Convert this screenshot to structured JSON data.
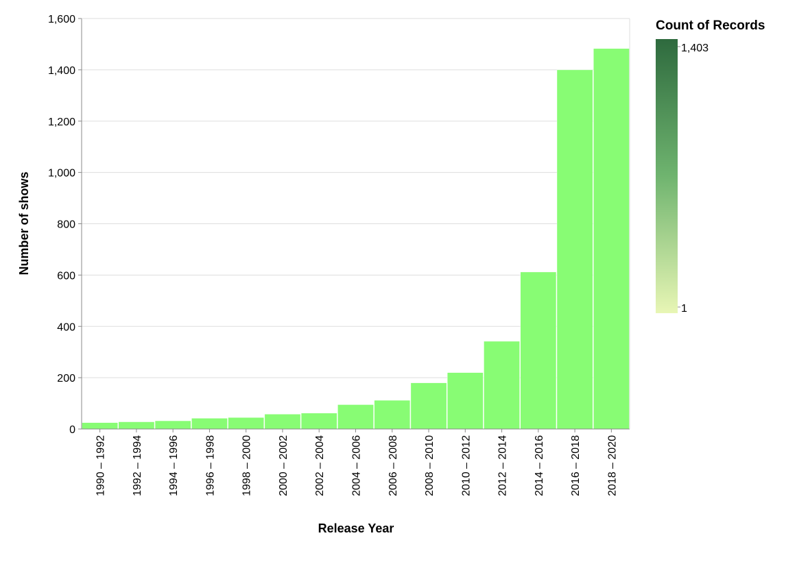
{
  "chart_data": {
    "type": "bar",
    "title": "",
    "xlabel": "Release Year",
    "ylabel": "Number of shows",
    "ylim": [
      0,
      1600
    ],
    "yticks": [
      0,
      200,
      400,
      600,
      800,
      1000,
      1200,
      1400,
      1600
    ],
    "ytick_labels": [
      "0",
      "200",
      "400",
      "600",
      "800",
      "1,000",
      "1,200",
      "1,400",
      "1,600"
    ],
    "grid": true,
    "bar_color": "#88fc74",
    "categories": [
      "1990 – 1992",
      "1992 – 1994",
      "1994 – 1996",
      "1996 – 1998",
      "1998 – 2000",
      "2000 – 2002",
      "2002 – 2004",
      "2004 – 2006",
      "2006 – 2008",
      "2008 – 2010",
      "2010 – 2012",
      "2012 – 2014",
      "2014 – 2016",
      "2016 – 2018",
      "2018 – 2020"
    ],
    "values": [
      25,
      28,
      32,
      42,
      45,
      58,
      62,
      95,
      112,
      180,
      220,
      342,
      612,
      1400,
      1483
    ],
    "legend": {
      "title": "Count of Records",
      "position": "right",
      "max_label": "1,403",
      "min_label": "1",
      "color_low": "#e8f6b5",
      "color_mid": "#6fb46f",
      "color_high": "#2e6a3e"
    }
  }
}
